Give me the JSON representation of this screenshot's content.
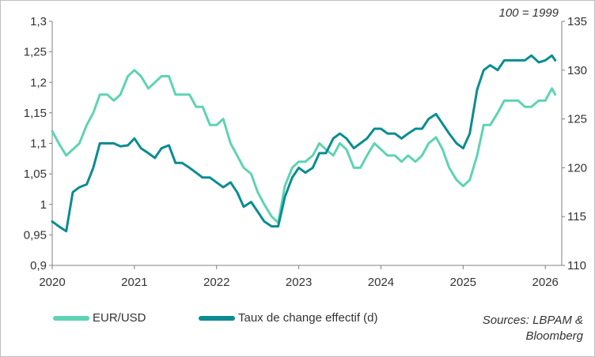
{
  "colors": {
    "eurusd": "#5fd3b3",
    "effective": "#0b8c92",
    "axis": "#808080",
    "text": "#333333"
  },
  "annotation": "100 = 1999",
  "source": {
    "line1": "Sources: LBPAM &",
    "line2": "Bloomberg"
  },
  "chart_data": {
    "type": "line",
    "title": "",
    "xlabel": "",
    "ylabel": "",
    "x_ticks": [
      "2020",
      "2021",
      "2022",
      "2023",
      "2024",
      "2025",
      "2026"
    ],
    "xlim": [
      2020,
      2026.2
    ],
    "y_left": {
      "ylim": [
        0.9,
        1.3
      ],
      "ticks": [
        "0,9",
        "0,95",
        "1",
        "1,05",
        "1,1",
        "1,15",
        "1,2",
        "1,25",
        "1,3"
      ]
    },
    "y_right": {
      "ylim": [
        110,
        135
      ],
      "ticks": [
        "110",
        "115",
        "120",
        "125",
        "130",
        "135"
      ]
    },
    "grid": false,
    "legend_position": "bottom-left",
    "series": [
      {
        "name": "EUR/USD",
        "axis": "left",
        "color": "#5fd3b3",
        "x": [
          2020.0,
          2020.08,
          2020.17,
          2020.25,
          2020.33,
          2020.42,
          2020.5,
          2020.58,
          2020.67,
          2020.75,
          2020.83,
          2020.92,
          2021.0,
          2021.08,
          2021.17,
          2021.25,
          2021.33,
          2021.42,
          2021.5,
          2021.58,
          2021.67,
          2021.75,
          2021.83,
          2021.92,
          2022.0,
          2022.08,
          2022.17,
          2022.25,
          2022.33,
          2022.42,
          2022.5,
          2022.58,
          2022.67,
          2022.75,
          2022.83,
          2022.92,
          2023.0,
          2023.08,
          2023.17,
          2023.25,
          2023.33,
          2023.42,
          2023.5,
          2023.58,
          2023.67,
          2023.75,
          2023.83,
          2023.92,
          2024.0,
          2024.08,
          2024.17,
          2024.25,
          2024.33,
          2024.42,
          2024.5,
          2024.58,
          2024.67,
          2024.75,
          2024.83,
          2024.92,
          2025.0,
          2025.08,
          2025.17,
          2025.25,
          2025.33,
          2025.42,
          2025.5,
          2025.58,
          2025.67,
          2025.75,
          2025.83,
          2025.92,
          2026.0,
          2026.08,
          2026.12
        ],
        "values": [
          1.12,
          1.1,
          1.08,
          1.09,
          1.1,
          1.13,
          1.15,
          1.18,
          1.18,
          1.17,
          1.18,
          1.21,
          1.22,
          1.21,
          1.19,
          1.2,
          1.21,
          1.21,
          1.18,
          1.18,
          1.18,
          1.16,
          1.16,
          1.13,
          1.13,
          1.14,
          1.1,
          1.08,
          1.06,
          1.05,
          1.02,
          1.0,
          0.98,
          0.97,
          1.03,
          1.06,
          1.07,
          1.07,
          1.08,
          1.1,
          1.09,
          1.08,
          1.1,
          1.09,
          1.06,
          1.06,
          1.08,
          1.1,
          1.09,
          1.08,
          1.08,
          1.07,
          1.08,
          1.07,
          1.08,
          1.1,
          1.11,
          1.09,
          1.06,
          1.04,
          1.03,
          1.04,
          1.08,
          1.13,
          1.13,
          1.15,
          1.17,
          1.17,
          1.17,
          1.16,
          1.16,
          1.17,
          1.17,
          1.19,
          1.18
        ]
      },
      {
        "name": "Taux de change effectif (d)",
        "axis": "right",
        "color": "#0b8c92",
        "x": [
          2020.0,
          2020.08,
          2020.17,
          2020.25,
          2020.33,
          2020.42,
          2020.5,
          2020.58,
          2020.67,
          2020.75,
          2020.83,
          2020.92,
          2021.0,
          2021.08,
          2021.17,
          2021.25,
          2021.33,
          2021.42,
          2021.5,
          2021.58,
          2021.67,
          2021.75,
          2021.83,
          2021.92,
          2022.0,
          2022.08,
          2022.17,
          2022.25,
          2022.33,
          2022.42,
          2022.5,
          2022.58,
          2022.67,
          2022.75,
          2022.83,
          2022.92,
          2023.0,
          2023.08,
          2023.17,
          2023.25,
          2023.33,
          2023.42,
          2023.5,
          2023.58,
          2023.67,
          2023.75,
          2023.83,
          2023.92,
          2024.0,
          2024.08,
          2024.17,
          2024.25,
          2024.33,
          2024.42,
          2024.5,
          2024.58,
          2024.67,
          2024.75,
          2024.83,
          2024.92,
          2025.0,
          2025.08,
          2025.17,
          2025.25,
          2025.33,
          2025.42,
          2025.5,
          2025.58,
          2025.67,
          2025.75,
          2025.83,
          2025.92,
          2026.0,
          2026.08,
          2026.12
        ],
        "values": [
          114.5,
          114.0,
          113.5,
          117.5,
          118.0,
          118.3,
          120.0,
          122.5,
          122.5,
          122.5,
          122.2,
          122.3,
          123.0,
          122.0,
          121.5,
          121.0,
          122.0,
          122.3,
          120.5,
          120.5,
          120.0,
          119.5,
          119.0,
          119.0,
          118.5,
          118.0,
          118.5,
          117.5,
          116.0,
          116.5,
          115.5,
          114.5,
          114.0,
          114.0,
          117.0,
          119.0,
          120.0,
          119.5,
          120.0,
          121.5,
          121.5,
          123.0,
          123.5,
          123.0,
          122.0,
          122.5,
          123.0,
          124.0,
          124.0,
          123.5,
          123.5,
          123.0,
          123.5,
          124.0,
          124.0,
          125.0,
          125.5,
          124.5,
          123.5,
          122.5,
          122.0,
          123.5,
          128.0,
          130.0,
          130.5,
          130.0,
          131.0,
          131.0,
          131.0,
          131.0,
          131.5,
          130.8,
          131.0,
          131.5,
          131.0
        ]
      }
    ]
  }
}
